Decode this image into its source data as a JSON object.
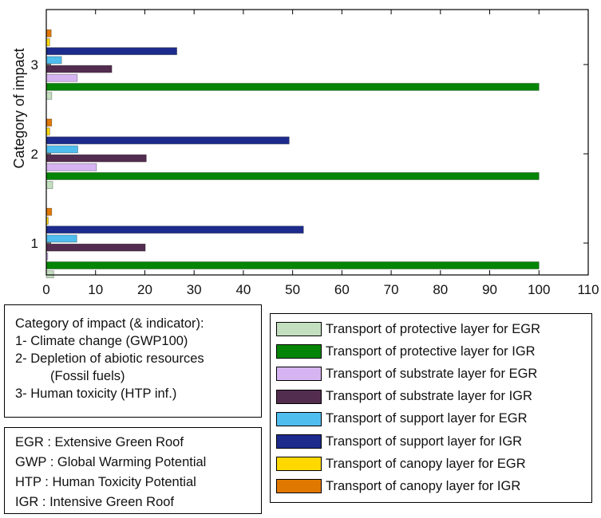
{
  "chart_data": {
    "type": "bar",
    "orientation": "horizontal",
    "ylabel": "Category of impact",
    "xlim": [
      0,
      110
    ],
    "x_ticks": [
      0,
      10,
      20,
      30,
      40,
      50,
      60,
      70,
      80,
      90,
      100,
      110
    ],
    "categories": [
      "1",
      "2",
      "3"
    ],
    "series": [
      {
        "name": "Transport of protective layer for EGR",
        "color": "#c3dfc0",
        "values": [
          1.5,
          1.3,
          1.1
        ]
      },
      {
        "name": "Transport of protective layer for IGR",
        "color": "#058505",
        "values": [
          100,
          100,
          100
        ]
      },
      {
        "name": "Transport of substrate layer for EGR",
        "color": "#d6b4f1",
        "values": [
          0.3,
          10.2,
          6.3
        ]
      },
      {
        "name": "Transport of substrate layer for IGR",
        "color": "#532d50",
        "values": [
          20.1,
          20.3,
          13.3
        ]
      },
      {
        "name": "Transport of support layer for EGR",
        "color": "#4fbdee",
        "values": [
          6.2,
          6.4,
          3.1
        ]
      },
      {
        "name": "Transport of support layer for IGR",
        "color": "#1c2b8c",
        "values": [
          52.2,
          49.3,
          26.5
        ]
      },
      {
        "name": "Transport of canopy layer for EGR",
        "color": "#ffd800",
        "values": [
          0.4,
          0.7,
          0.7
        ]
      },
      {
        "name": "Transport of canopy layer for IGR",
        "color": "#e07800",
        "values": [
          1.1,
          1.1,
          1.0
        ]
      }
    ],
    "grid": false,
    "legend": "bottom-right"
  },
  "notes": {
    "heading": "Category of impact (& indicator):",
    "line1": "1- Climate change (GWP100)",
    "line2": "2- Depletion of abiotic resources",
    "line2b": "(Fossil fuels)",
    "line3": "3- Human toxicity (HTP inf.)"
  },
  "abbreviations": [
    "EGR : Extensive Green Roof",
    "GWP : Global Warming Potential",
    "HTP : Human Toxicity Potential",
    "IGR : Intensive Green Roof"
  ]
}
